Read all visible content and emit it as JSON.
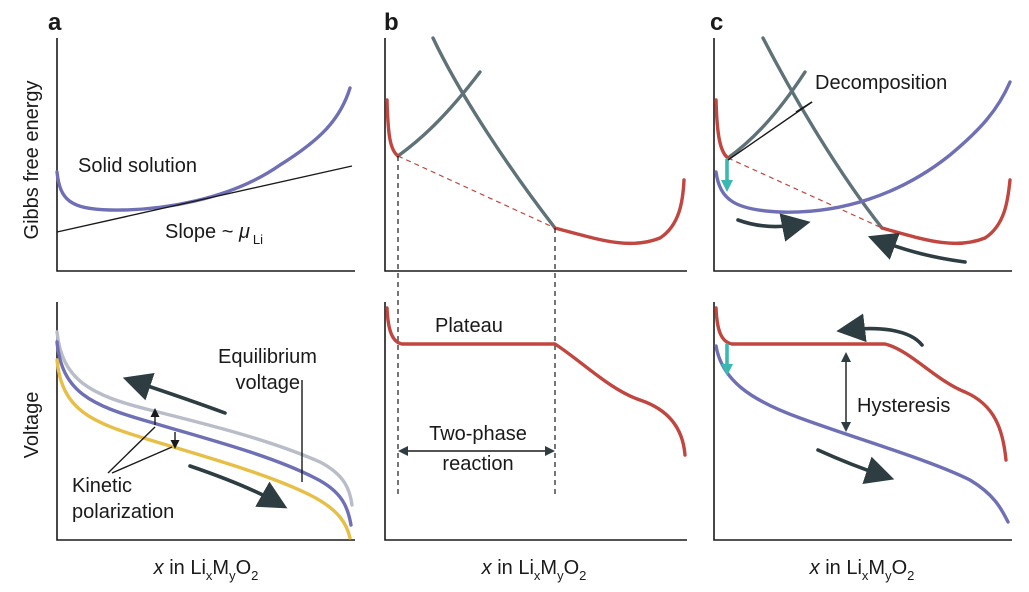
{
  "colors": {
    "red": "#c0463f",
    "gray": "#5f7278",
    "purple": "#6f6fb5",
    "yellow": "#e7bf46",
    "lightgray": "#b9bcc9",
    "dark": "#2d3d42",
    "cyan": "#3bb8b2"
  },
  "panels": {
    "a": {
      "letter": "a",
      "ylabel_top": "Gibbs free energy",
      "ylabel_bottom": "Voltage",
      "solid_solution": "Solid solution",
      "slope": "Slope ~ ",
      "mu": "μ",
      "mu_sub": "Li",
      "equilibrium_voltage_1": "Equilibrium",
      "equilibrium_voltage_2": "voltage",
      "kinetic_polarization_1": "Kinetic",
      "kinetic_polarization_2": "polarization"
    },
    "b": {
      "letter": "b",
      "plateau": "Plateau",
      "two_phase_1": "Two-phase",
      "two_phase_2": "reaction"
    },
    "c": {
      "letter": "c",
      "decomposition": "Decomposition",
      "hysteresis": "Hysteresis"
    }
  },
  "xlabel": {
    "x": "x",
    "in": " in Li",
    "sub_x": "x",
    "m": "M",
    "sub_y": "y",
    "o": "O",
    "sub_2": "2"
  }
}
